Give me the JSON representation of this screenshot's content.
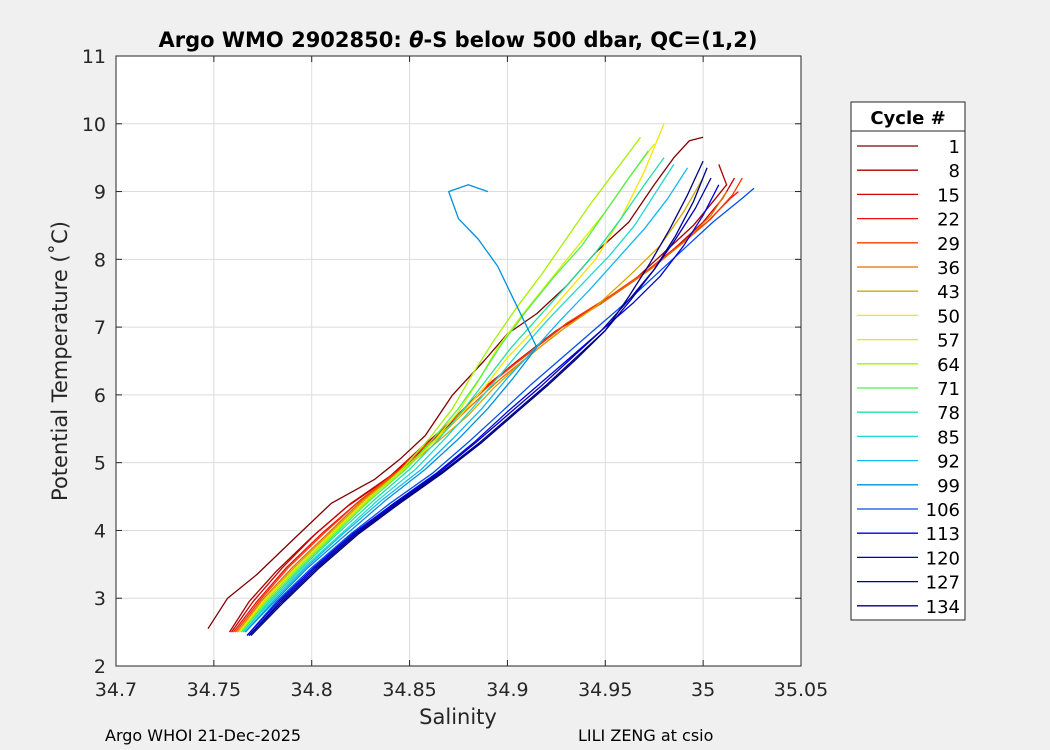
{
  "chart_data": {
    "type": "line",
    "title_prefix": "Argo WMO 2902850: ",
    "title_theta": "θ",
    "title_suffix": "-S below 500 dbar,  QC=(1,2)",
    "xlabel": "Salinity",
    "ylabel": "Potential Temperature (˚C)",
    "xlim": [
      34.7,
      35.05
    ],
    "ylim": [
      2,
      11
    ],
    "xticks": [
      "34.7",
      "34.75",
      "34.8",
      "34.85",
      "34.9",
      "34.95",
      "35",
      "35.05"
    ],
    "yticks": [
      "2",
      "3",
      "4",
      "5",
      "6",
      "7",
      "8",
      "9",
      "10",
      "11"
    ],
    "grid": true,
    "legend": {
      "title": "Cycle #",
      "position": "right",
      "entries": [
        {
          "label": "1",
          "color": "#800000"
        },
        {
          "label": "8",
          "color": "#a80000"
        },
        {
          "label": "15",
          "color": "#d00000"
        },
        {
          "label": "22",
          "color": "#f01010"
        },
        {
          "label": "29",
          "color": "#ff3a00"
        },
        {
          "label": "36",
          "color": "#e07000"
        },
        {
          "label": "43",
          "color": "#d4a800"
        },
        {
          "label": "50",
          "color": "#f5e600"
        },
        {
          "label": "57",
          "color": "#d8f000"
        },
        {
          "label": "64",
          "color": "#a8f000"
        },
        {
          "label": "71",
          "color": "#50f050"
        },
        {
          "label": "78",
          "color": "#20e0a0"
        },
        {
          "label": "85",
          "color": "#20d8d0"
        },
        {
          "label": "92",
          "color": "#10b8f0"
        },
        {
          "label": "99",
          "color": "#0090e0"
        },
        {
          "label": "106",
          "color": "#0050f0"
        },
        {
          "label": "113",
          "color": "#0000e0"
        },
        {
          "label": "120",
          "color": "#0000b8"
        },
        {
          "label": "127",
          "color": "#000090"
        },
        {
          "label": "134",
          "color": "#000080"
        }
      ]
    },
    "series": [
      {
        "name": "1",
        "color": "#800000",
        "x": [
          34.747,
          34.757,
          34.772,
          34.79,
          34.81,
          34.832,
          34.845,
          34.858,
          34.872,
          34.888,
          34.9,
          34.915,
          34.93,
          34.945,
          34.962,
          34.975,
          34.985,
          34.993,
          35.0
        ],
        "y": [
          2.55,
          3.0,
          3.35,
          3.85,
          4.4,
          4.75,
          5.05,
          5.4,
          6.0,
          6.5,
          6.9,
          7.2,
          7.6,
          8.1,
          8.55,
          9.1,
          9.5,
          9.75,
          9.8
        ]
      },
      {
        "name": "8",
        "color": "#a80000",
        "x": [
          34.758,
          34.768,
          34.782,
          34.8,
          34.818,
          34.838,
          34.855,
          34.872,
          34.888,
          34.905,
          34.925,
          34.945,
          34.965,
          34.98,
          34.995,
          35.005,
          35.012,
          35.008
        ],
        "y": [
          2.5,
          2.95,
          3.4,
          3.9,
          4.35,
          4.75,
          5.15,
          5.6,
          6.1,
          6.5,
          6.95,
          7.3,
          7.7,
          8.1,
          8.5,
          8.85,
          9.1,
          9.4
        ]
      },
      {
        "name": "15",
        "color": "#d00000",
        "x": [
          34.759,
          34.77,
          34.785,
          34.802,
          34.82,
          34.84,
          34.857,
          34.875,
          34.89,
          34.908,
          34.928,
          34.948,
          34.968,
          34.985,
          35.0,
          35.01,
          35.016
        ],
        "y": [
          2.5,
          2.95,
          3.45,
          3.95,
          4.4,
          4.8,
          5.25,
          5.7,
          6.15,
          6.55,
          7.0,
          7.35,
          7.75,
          8.15,
          8.55,
          8.9,
          9.2
        ]
      },
      {
        "name": "22",
        "color": "#f01010",
        "x": [
          34.76,
          34.772,
          34.787,
          34.805,
          34.823,
          34.843,
          34.86,
          34.876,
          34.892,
          34.91,
          34.93,
          34.95,
          34.97,
          34.987,
          35.002,
          35.014,
          35.018
        ],
        "y": [
          2.5,
          2.95,
          3.45,
          3.95,
          4.4,
          4.85,
          5.3,
          5.75,
          6.2,
          6.6,
          7.05,
          7.4,
          7.8,
          8.2,
          8.55,
          8.9,
          9.0
        ]
      },
      {
        "name": "29",
        "color": "#ff3a00",
        "x": [
          34.761,
          34.773,
          34.788,
          34.806,
          34.825,
          34.845,
          34.862,
          34.878,
          34.893,
          34.91,
          34.93,
          34.952,
          34.972,
          34.99,
          35.004,
          35.015,
          35.02
        ],
        "y": [
          2.5,
          2.95,
          3.45,
          3.95,
          4.45,
          4.9,
          5.35,
          5.8,
          6.2,
          6.6,
          7.05,
          7.45,
          7.85,
          8.25,
          8.6,
          8.95,
          9.2
        ]
      },
      {
        "name": "36",
        "color": "#e07000",
        "x": [
          34.762,
          34.774,
          34.79,
          34.808,
          34.826,
          34.846,
          34.864,
          34.88,
          34.895,
          34.912,
          34.932,
          34.953,
          34.973,
          34.99,
          35.004,
          35.012
        ],
        "y": [
          2.5,
          2.95,
          3.45,
          3.95,
          4.45,
          4.9,
          5.35,
          5.8,
          6.2,
          6.6,
          7.05,
          7.45,
          7.85,
          8.25,
          8.65,
          9.0
        ]
      },
      {
        "name": "43",
        "color": "#d4a800",
        "x": [
          34.762,
          34.775,
          34.791,
          34.809,
          34.827,
          34.847,
          34.864,
          34.88,
          34.893,
          34.908,
          34.925,
          34.945,
          34.962,
          34.978,
          34.99,
          35.0
        ],
        "y": [
          2.5,
          2.95,
          3.45,
          3.95,
          4.45,
          4.9,
          5.3,
          5.7,
          6.1,
          6.5,
          6.9,
          7.3,
          7.75,
          8.2,
          8.7,
          9.2
        ]
      },
      {
        "name": "50",
        "color": "#f5e600",
        "x": [
          34.763,
          34.775,
          34.792,
          34.81,
          34.828,
          34.848,
          34.862,
          34.876,
          34.888,
          34.9,
          34.915,
          34.93,
          34.945,
          34.958,
          34.97,
          34.98
        ],
        "y": [
          2.5,
          2.95,
          3.45,
          3.95,
          4.45,
          4.9,
          5.3,
          5.7,
          6.1,
          6.55,
          7.0,
          7.5,
          8.0,
          8.6,
          9.3,
          10.0
        ]
      },
      {
        "name": "57",
        "color": "#d8f000",
        "x": [
          34.763,
          34.776,
          34.792,
          34.81,
          34.828,
          34.847,
          34.862,
          34.875,
          34.885,
          34.895,
          34.908,
          34.922,
          34.936,
          34.95,
          34.962,
          34.975
        ],
        "y": [
          2.5,
          2.95,
          3.45,
          3.95,
          4.45,
          4.9,
          5.3,
          5.75,
          6.2,
          6.7,
          7.2,
          7.7,
          8.2,
          8.7,
          9.2,
          9.7
        ]
      },
      {
        "name": "64",
        "color": "#a8f000",
        "x": [
          34.764,
          34.776,
          34.793,
          34.811,
          34.829,
          34.846,
          34.86,
          34.872,
          34.882,
          34.893,
          34.905,
          34.918,
          34.93,
          34.942,
          34.955,
          34.968
        ],
        "y": [
          2.5,
          2.95,
          3.45,
          3.95,
          4.45,
          4.9,
          5.35,
          5.8,
          6.3,
          6.8,
          7.3,
          7.8,
          8.3,
          8.8,
          9.3,
          9.8
        ]
      },
      {
        "name": "71",
        "color": "#50f050",
        "x": [
          34.764,
          34.777,
          34.794,
          34.812,
          34.83,
          34.848,
          34.862,
          34.875,
          34.886,
          34.897,
          34.91,
          34.924,
          34.938,
          34.95,
          34.962,
          34.972
        ],
        "y": [
          2.5,
          2.95,
          3.45,
          3.95,
          4.45,
          4.9,
          5.35,
          5.8,
          6.25,
          6.75,
          7.25,
          7.75,
          8.2,
          8.7,
          9.2,
          9.6
        ]
      },
      {
        "name": "78",
        "color": "#20e0a0",
        "x": [
          34.765,
          34.778,
          34.795,
          34.813,
          34.832,
          34.85,
          34.865,
          34.878,
          34.89,
          34.902,
          34.916,
          34.93,
          34.945,
          34.958,
          34.97,
          34.98
        ],
        "y": [
          2.5,
          2.95,
          3.45,
          3.95,
          4.45,
          4.9,
          5.35,
          5.8,
          6.25,
          6.7,
          7.15,
          7.6,
          8.1,
          8.6,
          9.1,
          9.5
        ]
      },
      {
        "name": "85",
        "color": "#20d8d0",
        "x": [
          34.765,
          34.779,
          34.796,
          34.815,
          34.834,
          34.853,
          34.868,
          34.882,
          34.895,
          34.908,
          34.922,
          34.937,
          34.952,
          34.965,
          34.975,
          34.985
        ],
        "y": [
          2.5,
          2.95,
          3.45,
          3.95,
          4.45,
          4.9,
          5.35,
          5.8,
          6.25,
          6.7,
          7.15,
          7.6,
          8.05,
          8.5,
          8.95,
          9.4
        ]
      },
      {
        "name": "92",
        "color": "#10b8f0",
        "x": [
          34.766,
          34.78,
          34.797,
          34.816,
          34.836,
          34.856,
          34.872,
          34.887,
          34.9,
          34.913,
          34.927,
          34.942,
          34.956,
          34.97,
          34.982,
          34.992
        ],
        "y": [
          2.5,
          2.95,
          3.45,
          3.95,
          4.45,
          4.9,
          5.35,
          5.8,
          6.25,
          6.65,
          7.1,
          7.55,
          8.0,
          8.45,
          8.9,
          9.35
        ]
      },
      {
        "name": "99",
        "color": "#0090e0",
        "x": [
          34.766,
          34.781,
          34.798,
          34.818,
          34.838,
          34.858,
          34.875,
          34.89,
          34.903,
          34.915,
          34.905,
          34.895,
          34.885,
          34.875,
          34.87,
          34.88,
          34.89
        ],
        "y": [
          2.5,
          2.95,
          3.45,
          3.95,
          4.45,
          4.9,
          5.35,
          5.8,
          6.25,
          6.7,
          7.3,
          7.9,
          8.3,
          8.6,
          9.0,
          9.1,
          9.0
        ]
      },
      {
        "name": "106",
        "color": "#0050f0",
        "x": [
          34.767,
          34.782,
          34.8,
          34.82,
          34.84,
          34.862,
          34.88,
          34.897,
          34.912,
          34.928,
          34.944,
          34.96,
          34.975,
          34.99,
          35.005,
          35.02,
          35.026
        ],
        "y": [
          2.45,
          2.95,
          3.45,
          3.95,
          4.4,
          4.85,
          5.3,
          5.75,
          6.15,
          6.55,
          6.95,
          7.35,
          7.75,
          8.15,
          8.55,
          8.9,
          9.05
        ]
      },
      {
        "name": "113",
        "color": "#0000e0",
        "x": [
          34.767,
          34.783,
          34.801,
          34.821,
          34.842,
          34.864,
          34.883,
          34.9,
          34.916,
          34.932,
          34.948,
          34.964,
          34.978,
          34.99,
          35.0,
          35.008
        ],
        "y": [
          2.45,
          2.95,
          3.45,
          3.95,
          4.4,
          4.85,
          5.3,
          5.75,
          6.15,
          6.55,
          6.95,
          7.35,
          7.75,
          8.2,
          8.65,
          9.1
        ]
      },
      {
        "name": "120",
        "color": "#0000b8",
        "x": [
          34.768,
          34.784,
          34.802,
          34.822,
          34.843,
          34.865,
          34.884,
          34.902,
          34.918,
          34.933,
          34.948,
          34.962,
          34.975,
          34.986,
          34.996,
          35.004
        ],
        "y": [
          2.45,
          2.95,
          3.45,
          3.95,
          4.4,
          4.85,
          5.3,
          5.75,
          6.15,
          6.55,
          6.95,
          7.4,
          7.85,
          8.3,
          8.75,
          9.2
        ]
      },
      {
        "name": "127",
        "color": "#000090",
        "x": [
          34.768,
          34.785,
          34.803,
          34.823,
          34.844,
          34.866,
          34.886,
          34.904,
          34.92,
          34.935,
          34.95,
          34.963,
          34.975,
          34.986,
          34.995,
          35.002
        ],
        "y": [
          2.45,
          2.95,
          3.45,
          3.95,
          4.4,
          4.85,
          5.3,
          5.75,
          6.15,
          6.55,
          6.95,
          7.4,
          7.85,
          8.35,
          8.85,
          9.35
        ]
      },
      {
        "name": "134",
        "color": "#000080",
        "x": [
          34.769,
          34.786,
          34.804,
          34.824,
          34.845,
          34.867,
          34.887,
          34.905,
          34.921,
          34.936,
          34.95,
          34.962,
          34.973,
          34.983,
          34.992,
          35.0
        ],
        "y": [
          2.45,
          2.95,
          3.45,
          3.95,
          4.4,
          4.85,
          5.3,
          5.75,
          6.15,
          6.55,
          6.95,
          7.45,
          7.95,
          8.45,
          8.95,
          9.45
        ]
      }
    ]
  },
  "footer": {
    "left": "Argo WHOI 21-Dec-2025",
    "right": "LILI ZENG at csio"
  }
}
